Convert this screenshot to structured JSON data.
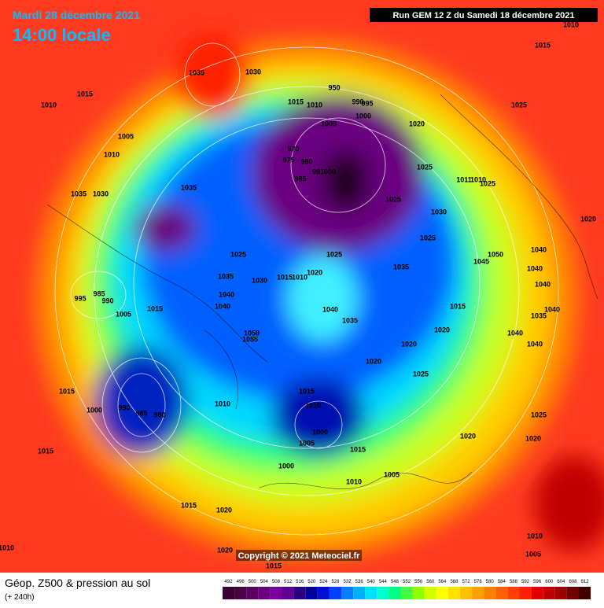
{
  "header": {
    "date": "Mardi 28 décembre 2021",
    "time": "14:00 locale",
    "run": "Run GEM 12 Z du Samedi 18 décembre 2021"
  },
  "footer": {
    "title": "Géop. Z500 & pression au sol",
    "lead": "(+ 240h)",
    "copyright": "Copyright © 2021 Meteociel.fr"
  },
  "legend": {
    "values": [
      492,
      496,
      500,
      504,
      508,
      512,
      516,
      520,
      524,
      528,
      532,
      536,
      540,
      544,
      548,
      552,
      556,
      560,
      564,
      568,
      572,
      576,
      580,
      584,
      588,
      592,
      596,
      600,
      604,
      608,
      612
    ],
    "colors": [
      "#3d0033",
      "#4b0045",
      "#5a0060",
      "#6a0080",
      "#7a00a0",
      "#600090",
      "#2a0080",
      "#0000a0",
      "#0010d0",
      "#0040ff",
      "#0080ff",
      "#00b0ff",
      "#00e0ff",
      "#00ffd0",
      "#00ff80",
      "#40ff40",
      "#90ff00",
      "#d0ff00",
      "#ffff00",
      "#ffe000",
      "#ffc000",
      "#ffa000",
      "#ff8000",
      "#ff6000",
      "#ff4000",
      "#ff2000",
      "#e00000",
      "#c00000",
      "#a00000",
      "#700000",
      "#400000"
    ]
  },
  "isobar_labels": [
    "1035",
    "1030",
    "1015",
    "1010",
    "1005",
    "1010",
    "1035",
    "1035",
    "1030",
    "1015",
    "1010",
    "950",
    "990",
    "995",
    "1000",
    "1005",
    "1020",
    "970",
    "975",
    "980",
    "985",
    "991000",
    "1025",
    "1025",
    "1030",
    "1011",
    "1010",
    "1025",
    "1025",
    "1025",
    "1025",
    "1035",
    "1035",
    "1030",
    "1015",
    "1010",
    "1020",
    "985",
    "995",
    "990",
    "1005",
    "1015",
    "1040",
    "1040",
    "1040",
    "1035",
    "1015",
    "1020",
    "1050",
    "1055",
    "1020",
    "1020",
    "1025",
    "1015",
    "1015",
    "1010",
    "1000",
    "990",
    "985",
    "980",
    "1010",
    "1000",
    "1005",
    "1015",
    "1000",
    "1005",
    "1010",
    "1015",
    "1015",
    "1020",
    "1020",
    "1020",
    "1025",
    "1040",
    "1040",
    "1035",
    "1040",
    "1040",
    "1040",
    "1020",
    "1040",
    "1025",
    "1015",
    "1010",
    "1010",
    "1005",
    "1020",
    "1015",
    "1010",
    "1050",
    "1045"
  ]
}
